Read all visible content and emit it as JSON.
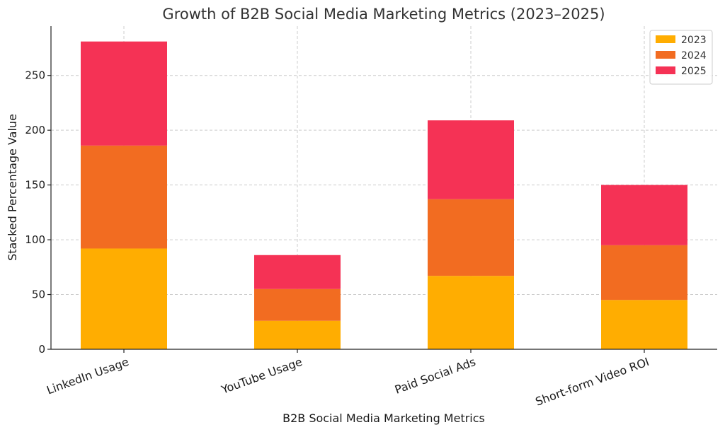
{
  "chart_data": {
    "type": "bar",
    "stacked": true,
    "title": "Growth of B2B Social Media Marketing Metrics (2023–2025)",
    "xlabel": "B2B Social Media Marketing Metrics",
    "ylabel": "Stacked Percentage Value",
    "categories": [
      "LinkedIn Usage",
      "YouTube Usage",
      "Paid Social Ads",
      "Short-form Video ROI"
    ],
    "series": [
      {
        "name": "2023",
        "color": "#FFAD01",
        "values": [
          92,
          26,
          67,
          45
        ]
      },
      {
        "name": "2024",
        "color": "#F26C21",
        "values": [
          94,
          29,
          70,
          50
        ]
      },
      {
        "name": "2025",
        "color": "#F53255",
        "values": [
          95,
          31,
          72,
          55
        ]
      }
    ],
    "ylim": [
      0,
      295
    ],
    "yticks": [
      0,
      50,
      100,
      150,
      200,
      250
    ],
    "grid": true,
    "legend_position": "top-right"
  }
}
